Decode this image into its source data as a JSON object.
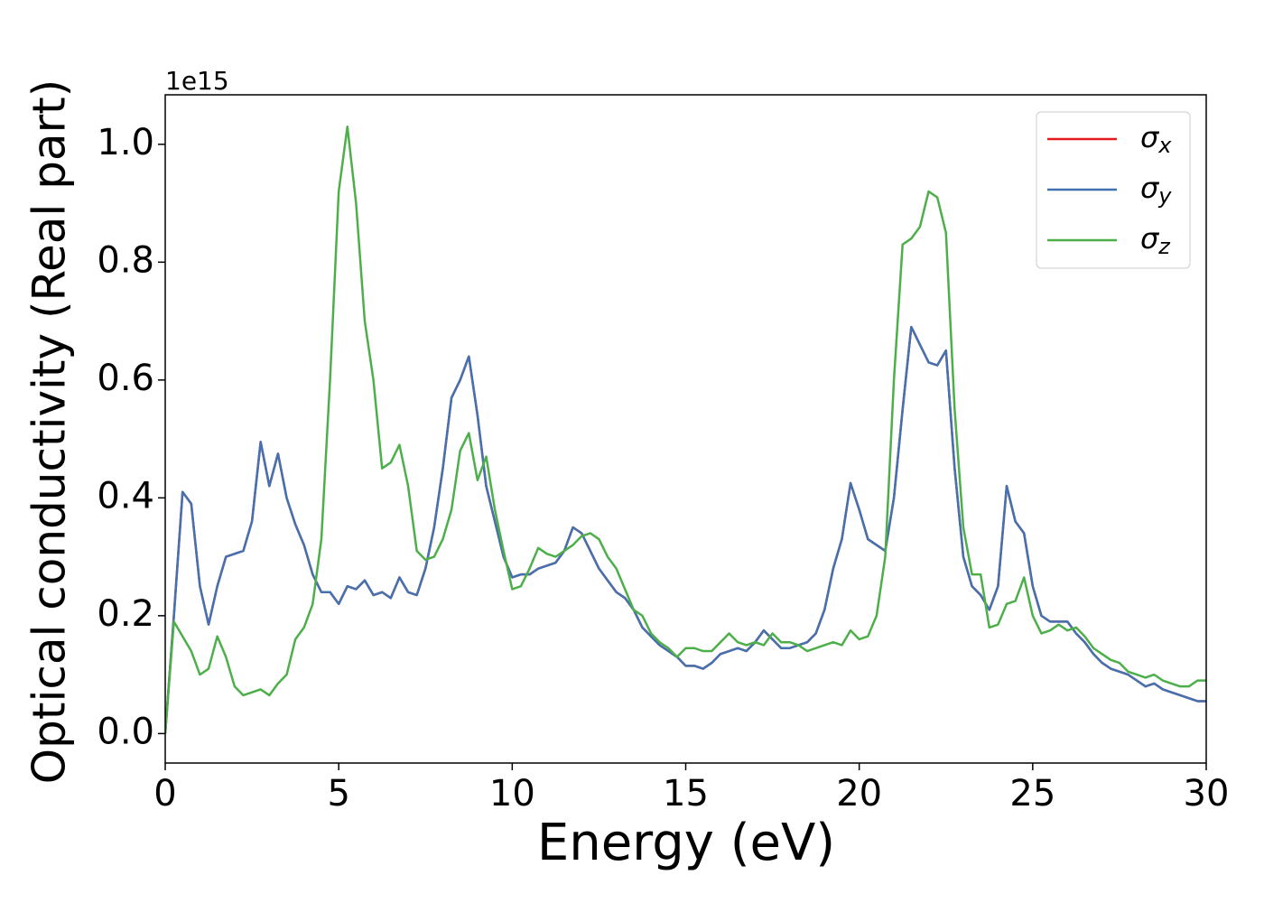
{
  "chart_data": {
    "type": "line",
    "xlabel": "Energy (eV)",
    "ylabel": "Optical conductivity (Real part)",
    "y_offset_label": "1e15",
    "xlim": [
      0,
      30
    ],
    "ylim": [
      -0.05,
      1.084
    ],
    "xticks": [
      0,
      5,
      10,
      15,
      20,
      25,
      30
    ],
    "yticks": [
      {
        "value": 0,
        "label": "0.0"
      },
      0.2,
      0.4,
      0.6,
      0.8,
      {
        "value": 1,
        "label": "1.0"
      }
    ],
    "grid": false,
    "legend": "upper right",
    "x": [
      0,
      0.25,
      0.5,
      0.75,
      1,
      1.25,
      1.5,
      1.75,
      2,
      2.25,
      2.5,
      2.75,
      3,
      3.25,
      3.5,
      3.75,
      4,
      4.25,
      4.5,
      4.75,
      5,
      5.25,
      5.5,
      5.75,
      6,
      6.25,
      6.5,
      6.75,
      7,
      7.25,
      7.5,
      7.75,
      8,
      8.25,
      8.5,
      8.75,
      9,
      9.25,
      9.5,
      9.75,
      10,
      10.25,
      10.5,
      10.75,
      11,
      11.25,
      11.5,
      11.75,
      12,
      12.25,
      12.5,
      12.75,
      13,
      13.25,
      13.5,
      13.75,
      14,
      14.25,
      14.5,
      14.75,
      15,
      15.25,
      15.5,
      15.75,
      16,
      16.25,
      16.5,
      16.75,
      17,
      17.25,
      17.5,
      17.75,
      18,
      18.25,
      18.5,
      18.75,
      19,
      19.25,
      19.5,
      19.75,
      20,
      20.25,
      20.5,
      20.75,
      21,
      21.25,
      21.5,
      21.75,
      22,
      22.25,
      22.5,
      22.75,
      23,
      23.25,
      23.5,
      23.75,
      24,
      24.25,
      24.5,
      24.75,
      25,
      25.25,
      25.5,
      25.75,
      26,
      26.25,
      26.5,
      26.75,
      27,
      27.25,
      27.5,
      27.75,
      28,
      28.25,
      28.5,
      28.75,
      29,
      29.25,
      29.5,
      29.75,
      30
    ],
    "series": [
      {
        "name": "σx",
        "color": "#e41a1c",
        "values": [
          0,
          0.2,
          0.41,
          0.39,
          0.25,
          0.185,
          0.25,
          0.3,
          0.305,
          0.31,
          0.36,
          0.495,
          0.42,
          0.475,
          0.4,
          0.355,
          0.32,
          0.27,
          0.24,
          0.24,
          0.22,
          0.25,
          0.245,
          0.26,
          0.235,
          0.24,
          0.23,
          0.265,
          0.24,
          0.235,
          0.28,
          0.35,
          0.45,
          0.57,
          0.6,
          0.64,
          0.54,
          0.42,
          0.36,
          0.3,
          0.265,
          0.27,
          0.27,
          0.28,
          0.285,
          0.29,
          0.31,
          0.35,
          0.34,
          0.31,
          0.28,
          0.26,
          0.24,
          0.23,
          0.21,
          0.18,
          0.165,
          0.15,
          0.14,
          0.13,
          0.115,
          0.115,
          0.11,
          0.12,
          0.135,
          0.14,
          0.145,
          0.14,
          0.155,
          0.175,
          0.16,
          0.145,
          0.145,
          0.15,
          0.155,
          0.17,
          0.21,
          0.28,
          0.33,
          0.425,
          0.38,
          0.33,
          0.32,
          0.31,
          0.4,
          0.55,
          0.69,
          0.66,
          0.63,
          0.625,
          0.65,
          0.45,
          0.3,
          0.25,
          0.235,
          0.21,
          0.25,
          0.42,
          0.36,
          0.34,
          0.25,
          0.2,
          0.19,
          0.19,
          0.19,
          0.17,
          0.155,
          0.135,
          0.12,
          0.11,
          0.105,
          0.1,
          0.09,
          0.08,
          0.085,
          0.075,
          0.07,
          0.065,
          0.06,
          0.055,
          0.055
        ]
      },
      {
        "name": "σy",
        "color": "#4272b0",
        "values": [
          0,
          0.2,
          0.41,
          0.39,
          0.25,
          0.185,
          0.25,
          0.3,
          0.305,
          0.31,
          0.36,
          0.495,
          0.42,
          0.475,
          0.4,
          0.355,
          0.32,
          0.27,
          0.24,
          0.24,
          0.22,
          0.25,
          0.245,
          0.26,
          0.235,
          0.24,
          0.23,
          0.265,
          0.24,
          0.235,
          0.28,
          0.35,
          0.45,
          0.57,
          0.6,
          0.64,
          0.54,
          0.42,
          0.36,
          0.3,
          0.265,
          0.27,
          0.27,
          0.28,
          0.285,
          0.29,
          0.31,
          0.35,
          0.34,
          0.31,
          0.28,
          0.26,
          0.24,
          0.23,
          0.21,
          0.18,
          0.165,
          0.15,
          0.14,
          0.13,
          0.115,
          0.115,
          0.11,
          0.12,
          0.135,
          0.14,
          0.145,
          0.14,
          0.155,
          0.175,
          0.16,
          0.145,
          0.145,
          0.15,
          0.155,
          0.17,
          0.21,
          0.28,
          0.33,
          0.425,
          0.38,
          0.33,
          0.32,
          0.31,
          0.4,
          0.55,
          0.69,
          0.66,
          0.63,
          0.625,
          0.65,
          0.45,
          0.3,
          0.25,
          0.235,
          0.21,
          0.25,
          0.42,
          0.36,
          0.34,
          0.25,
          0.2,
          0.19,
          0.19,
          0.19,
          0.17,
          0.155,
          0.135,
          0.12,
          0.11,
          0.105,
          0.1,
          0.09,
          0.08,
          0.085,
          0.075,
          0.07,
          0.065,
          0.06,
          0.055,
          0.055
        ]
      },
      {
        "name": "σz",
        "color": "#4daf4a",
        "values": [
          0,
          0.19,
          0.165,
          0.14,
          0.1,
          0.11,
          0.165,
          0.13,
          0.08,
          0.065,
          0.07,
          0.075,
          0.065,
          0.085,
          0.1,
          0.16,
          0.18,
          0.22,
          0.33,
          0.6,
          0.92,
          1.03,
          0.9,
          0.7,
          0.6,
          0.45,
          0.46,
          0.49,
          0.42,
          0.31,
          0.295,
          0.3,
          0.33,
          0.38,
          0.48,
          0.51,
          0.43,
          0.47,
          0.38,
          0.31,
          0.245,
          0.25,
          0.28,
          0.315,
          0.305,
          0.3,
          0.31,
          0.32,
          0.335,
          0.34,
          0.33,
          0.3,
          0.28,
          0.245,
          0.21,
          0.2,
          0.17,
          0.155,
          0.145,
          0.13,
          0.145,
          0.145,
          0.14,
          0.14,
          0.155,
          0.17,
          0.155,
          0.15,
          0.155,
          0.15,
          0.17,
          0.155,
          0.155,
          0.15,
          0.14,
          0.145,
          0.15,
          0.155,
          0.15,
          0.175,
          0.16,
          0.165,
          0.2,
          0.3,
          0.6,
          0.83,
          0.84,
          0.86,
          0.92,
          0.91,
          0.85,
          0.55,
          0.35,
          0.27,
          0.27,
          0.18,
          0.185,
          0.22,
          0.225,
          0.265,
          0.2,
          0.17,
          0.175,
          0.185,
          0.175,
          0.18,
          0.165,
          0.145,
          0.135,
          0.125,
          0.12,
          0.105,
          0.1,
          0.095,
          0.1,
          0.09,
          0.085,
          0.08,
          0.08,
          0.09,
          0.09
        ]
      }
    ]
  }
}
